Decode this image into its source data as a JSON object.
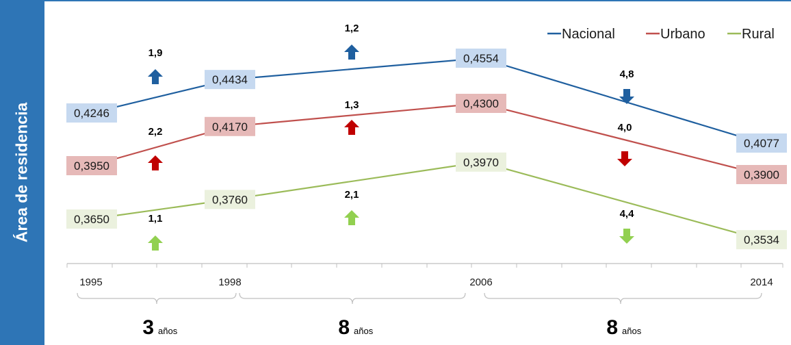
{
  "panel": {
    "title": "Área de residencia",
    "color": "#2e75b6"
  },
  "chart_data": {
    "type": "line",
    "x": [
      "1995",
      "1998",
      "2006",
      "2014"
    ],
    "ylim": [
      0.34,
      0.46
    ],
    "legend_position": "top-right",
    "series": [
      {
        "name": "Nacional",
        "values": [
          0.4246,
          0.4434,
          0.4554,
          0.4077
        ],
        "labels": [
          "0,4246",
          "0,4434",
          "0,4554",
          "0,4077"
        ],
        "color": "#1f5f9f",
        "box_color": "#c6d9f0"
      },
      {
        "name": "Urbano",
        "values": [
          0.395,
          0.417,
          0.43,
          0.39
        ],
        "labels": [
          "0,3950",
          "0,4170",
          "0,4300",
          "0,3900"
        ],
        "color": "#c0504d",
        "box_color": "#e6b9b8"
      },
      {
        "name": "Rural",
        "values": [
          0.365,
          0.376,
          0.397,
          0.3534
        ],
        "labels": [
          "0,3650",
          "0,3760",
          "0,3970",
          "0,3534"
        ],
        "color": "#9bbb59",
        "box_color": "#ebf1de"
      }
    ],
    "changes": [
      {
        "series": "Nacional",
        "period": 0,
        "value": "1,9",
        "direction": "up",
        "color": "#1f5f9f"
      },
      {
        "series": "Nacional",
        "period": 1,
        "value": "1,2",
        "direction": "up",
        "color": "#1f5f9f"
      },
      {
        "series": "Nacional",
        "period": 2,
        "value": "4,8",
        "direction": "down",
        "color": "#1f5f9f"
      },
      {
        "series": "Urbano",
        "period": 0,
        "value": "2,2",
        "direction": "up",
        "color": "#c00000"
      },
      {
        "series": "Urbano",
        "period": 1,
        "value": "1,3",
        "direction": "up",
        "color": "#c00000"
      },
      {
        "series": "Urbano",
        "period": 2,
        "value": "4,0",
        "direction": "down",
        "color": "#c00000"
      },
      {
        "series": "Rural",
        "period": 0,
        "value": "1,1",
        "direction": "up",
        "color": "#92d050"
      },
      {
        "series": "Rural",
        "period": 1,
        "value": "2,1",
        "direction": "up",
        "color": "#92d050"
      },
      {
        "series": "Rural",
        "period": 2,
        "value": "4,4",
        "direction": "down",
        "color": "#92d050"
      }
    ],
    "periods": [
      {
        "number": "3",
        "unit": "años"
      },
      {
        "number": "8",
        "unit": "años"
      },
      {
        "number": "8",
        "unit": "años"
      }
    ]
  }
}
